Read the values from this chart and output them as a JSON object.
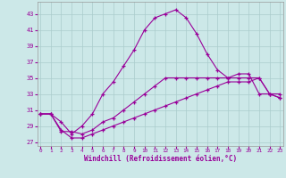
{
  "xlabel": "Windchill (Refroidissement éolien,°C)",
  "bg_color": "#cce8e8",
  "grid_color": "#aacccc",
  "line_color": "#990099",
  "x_ticks": [
    0,
    1,
    2,
    3,
    4,
    5,
    6,
    7,
    8,
    9,
    10,
    11,
    12,
    13,
    14,
    15,
    16,
    17,
    18,
    19,
    20,
    21,
    22,
    23
  ],
  "y_ticks": [
    27,
    29,
    31,
    33,
    35,
    37,
    39,
    41,
    43
  ],
  "ylim": [
    26.5,
    44.5
  ],
  "xlim": [
    -0.3,
    23.3
  ],
  "series1_x": [
    0,
    1,
    2,
    3,
    4,
    5,
    6,
    7,
    8,
    9,
    10,
    11,
    12,
    13,
    14,
    15,
    16,
    17,
    18,
    19,
    20,
    21,
    22,
    23
  ],
  "series1_y": [
    30.5,
    30.5,
    28.3,
    28.3,
    28.0,
    28.5,
    29.5,
    30.0,
    31.0,
    32.0,
    33.0,
    34.0,
    35.0,
    35.0,
    35.0,
    35.0,
    35.0,
    35.0,
    35.0,
    35.0,
    35.0,
    35.0,
    33.0,
    32.5
  ],
  "series2_x": [
    0,
    1,
    2,
    3,
    4,
    5,
    6,
    7,
    8,
    9,
    10,
    11,
    12,
    13,
    14,
    15,
    16,
    17,
    18,
    19,
    20,
    21,
    22,
    23
  ],
  "series2_y": [
    30.5,
    30.5,
    29.5,
    28.0,
    29.0,
    30.5,
    33.0,
    34.5,
    36.5,
    38.5,
    41.0,
    42.5,
    43.0,
    43.5,
    42.5,
    40.5,
    38.0,
    36.0,
    35.0,
    35.5,
    35.5,
    33.0,
    33.0,
    33.0
  ],
  "series3_x": [
    0,
    1,
    2,
    3,
    4,
    5,
    6,
    7,
    8,
    9,
    10,
    11,
    12,
    13,
    14,
    15,
    16,
    17,
    18,
    19,
    20,
    21,
    22,
    23
  ],
  "series3_y": [
    30.5,
    30.5,
    28.5,
    27.5,
    27.5,
    28.0,
    28.5,
    29.0,
    29.5,
    30.0,
    30.5,
    31.0,
    31.5,
    32.0,
    32.5,
    33.0,
    33.5,
    34.0,
    34.5,
    34.5,
    34.5,
    35.0,
    33.0,
    32.5
  ]
}
